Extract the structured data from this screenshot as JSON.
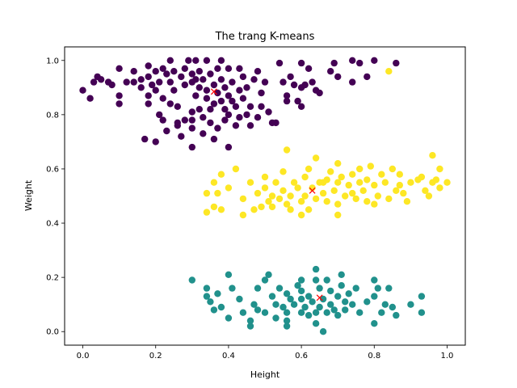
{
  "chart_data": {
    "type": "scatter",
    "title": "The trang K-means",
    "xlabel": "Height",
    "ylabel": "Weight",
    "xlim": [
      -0.05,
      1.05
    ],
    "ylim": [
      -0.05,
      1.05
    ],
    "xticks": [
      "0.0",
      "0.2",
      "0.4",
      "0.6",
      "0.8",
      "1.0"
    ],
    "yticks": [
      "0.0",
      "0.2",
      "0.4",
      "0.6",
      "0.8",
      "1.0"
    ],
    "grid": false,
    "legend": "none",
    "cluster_colors": [
      "#440154",
      "#21918c",
      "#fde725"
    ],
    "centroid_color": "#ff0000",
    "clusters": [
      {
        "color": "#440154",
        "points": [
          [
            0.0,
            0.89
          ],
          [
            0.02,
            0.86
          ],
          [
            0.03,
            0.92
          ],
          [
            0.04,
            0.94
          ],
          [
            0.05,
            0.93
          ],
          [
            0.07,
            0.92
          ],
          [
            0.08,
            0.91
          ],
          [
            0.1,
            0.97
          ],
          [
            0.1,
            0.87
          ],
          [
            0.1,
            0.84
          ],
          [
            0.12,
            0.92
          ],
          [
            0.14,
            0.96
          ],
          [
            0.16,
            0.93
          ],
          [
            0.16,
            0.9
          ],
          [
            0.18,
            0.98
          ],
          [
            0.18,
            0.94
          ],
          [
            0.18,
            0.87
          ],
          [
            0.18,
            0.84
          ],
          [
            0.19,
            0.91
          ],
          [
            0.2,
            0.96
          ],
          [
            0.2,
            0.89
          ],
          [
            0.21,
            0.92
          ],
          [
            0.22,
            0.97
          ],
          [
            0.22,
            0.86
          ],
          [
            0.23,
            0.95
          ],
          [
            0.23,
            0.74
          ],
          [
            0.24,
            1.0
          ],
          [
            0.24,
            0.92
          ],
          [
            0.25,
            0.96
          ],
          [
            0.25,
            0.89
          ],
          [
            0.26,
            0.83
          ],
          [
            0.26,
            0.76
          ],
          [
            0.27,
            0.94
          ],
          [
            0.27,
            0.72
          ],
          [
            0.28,
            0.97
          ],
          [
            0.28,
            0.91
          ],
          [
            0.29,
            1.0
          ],
          [
            0.3,
            0.95
          ],
          [
            0.3,
            0.92
          ],
          [
            0.3,
            0.81
          ],
          [
            0.3,
            0.75
          ],
          [
            0.3,
            0.68
          ],
          [
            0.31,
            1.0
          ],
          [
            0.31,
            0.93
          ],
          [
            0.31,
            0.87
          ],
          [
            0.32,
            0.96
          ],
          [
            0.32,
            0.9
          ],
          [
            0.32,
            0.82
          ],
          [
            0.33,
            0.93
          ],
          [
            0.33,
            0.79
          ],
          [
            0.33,
            0.73
          ],
          [
            0.34,
            1.0
          ],
          [
            0.34,
            0.89
          ],
          [
            0.34,
            0.86
          ],
          [
            0.35,
            0.95
          ],
          [
            0.35,
            0.82
          ],
          [
            0.35,
            0.77
          ],
          [
            0.36,
            0.91
          ],
          [
            0.36,
            0.84
          ],
          [
            0.37,
            0.97
          ],
          [
            0.37,
            0.88
          ],
          [
            0.37,
            0.75
          ],
          [
            0.38,
            1.0
          ],
          [
            0.38,
            0.93
          ],
          [
            0.38,
            0.85
          ],
          [
            0.39,
            0.9
          ],
          [
            0.39,
            0.82
          ],
          [
            0.39,
            0.78
          ],
          [
            0.4,
            0.97
          ],
          [
            0.4,
            0.87
          ],
          [
            0.4,
            0.8
          ],
          [
            0.4,
            0.68
          ],
          [
            0.41,
            0.92
          ],
          [
            0.41,
            0.85
          ],
          [
            0.42,
            0.83
          ],
          [
            0.42,
            0.76
          ],
          [
            0.43,
            0.97
          ],
          [
            0.43,
            0.89
          ],
          [
            0.43,
            0.79
          ],
          [
            0.44,
            0.94
          ],
          [
            0.44,
            0.86
          ],
          [
            0.45,
            0.9
          ],
          [
            0.45,
            0.8
          ],
          [
            0.46,
            0.83
          ],
          [
            0.47,
            0.93
          ],
          [
            0.48,
            0.96
          ],
          [
            0.48,
            0.79
          ],
          [
            0.49,
            0.88
          ],
          [
            0.49,
            0.83
          ],
          [
            0.5,
            0.92
          ],
          [
            0.51,
            0.81
          ],
          [
            0.53,
            0.77
          ],
          [
            0.54,
            0.99
          ],
          [
            0.55,
            0.92
          ],
          [
            0.56,
            0.87
          ],
          [
            0.56,
            0.85
          ],
          [
            0.57,
            0.94
          ],
          [
            0.58,
            0.91
          ],
          [
            0.59,
            0.85
          ],
          [
            0.6,
            0.99
          ],
          [
            0.6,
            0.9
          ],
          [
            0.6,
            0.83
          ],
          [
            0.61,
            0.91
          ],
          [
            0.62,
            0.97
          ],
          [
            0.63,
            0.92
          ],
          [
            0.64,
            0.89
          ],
          [
            0.65,
            0.88
          ],
          [
            0.68,
            0.96
          ],
          [
            0.69,
            0.99
          ],
          [
            0.7,
            0.94
          ],
          [
            0.74,
            1.0
          ],
          [
            0.74,
            0.92
          ],
          [
            0.76,
            0.99
          ],
          [
            0.78,
            0.94
          ],
          [
            0.8,
            1.0
          ],
          [
            0.86,
            0.99
          ],
          [
            0.17,
            0.71
          ],
          [
            0.2,
            0.7
          ],
          [
            0.22,
            0.78
          ],
          [
            0.21,
            0.8
          ],
          [
            0.46,
            0.76
          ],
          [
            0.28,
            0.78
          ],
          [
            0.3,
            0.78
          ],
          [
            0.36,
            0.71
          ],
          [
            0.24,
            0.84
          ],
          [
            0.14,
            0.92
          ],
          [
            0.52,
            0.77
          ],
          [
            0.26,
            0.77
          ]
        ]
      },
      {
        "color": "#21918c",
        "points": [
          [
            0.3,
            0.19
          ],
          [
            0.34,
            0.16
          ],
          [
            0.34,
            0.13
          ],
          [
            0.35,
            0.11
          ],
          [
            0.36,
            0.08
          ],
          [
            0.37,
            0.14
          ],
          [
            0.38,
            0.09
          ],
          [
            0.4,
            0.21
          ],
          [
            0.4,
            0.05
          ],
          [
            0.41,
            0.16
          ],
          [
            0.43,
            0.12
          ],
          [
            0.44,
            0.07
          ],
          [
            0.46,
            0.04
          ],
          [
            0.46,
            0.02
          ],
          [
            0.47,
            0.1
          ],
          [
            0.48,
            0.16
          ],
          [
            0.48,
            0.08
          ],
          [
            0.5,
            0.19
          ],
          [
            0.5,
            0.07
          ],
          [
            0.51,
            0.21
          ],
          [
            0.52,
            0.13
          ],
          [
            0.53,
            0.05
          ],
          [
            0.53,
            0.1
          ],
          [
            0.54,
            0.16
          ],
          [
            0.55,
            0.09
          ],
          [
            0.56,
            0.14
          ],
          [
            0.56,
            0.07
          ],
          [
            0.56,
            0.04
          ],
          [
            0.56,
            0.02
          ],
          [
            0.57,
            0.12
          ],
          [
            0.58,
            0.1
          ],
          [
            0.59,
            0.17
          ],
          [
            0.6,
            0.19
          ],
          [
            0.6,
            0.15
          ],
          [
            0.6,
            0.12
          ],
          [
            0.6,
            0.07
          ],
          [
            0.61,
            0.09
          ],
          [
            0.62,
            0.13
          ],
          [
            0.62,
            0.06
          ],
          [
            0.63,
            0.11
          ],
          [
            0.64,
            0.23
          ],
          [
            0.64,
            0.19
          ],
          [
            0.64,
            0.07
          ],
          [
            0.64,
            0.03
          ],
          [
            0.65,
            0.16
          ],
          [
            0.65,
            0.09
          ],
          [
            0.66,
            0.12
          ],
          [
            0.66,
            0.0
          ],
          [
            0.67,
            0.19
          ],
          [
            0.67,
            0.07
          ],
          [
            0.68,
            0.15
          ],
          [
            0.68,
            0.1
          ],
          [
            0.69,
            0.08
          ],
          [
            0.7,
            0.13
          ],
          [
            0.7,
            0.06
          ],
          [
            0.71,
            0.21
          ],
          [
            0.71,
            0.17
          ],
          [
            0.72,
            0.11
          ],
          [
            0.72,
            0.08
          ],
          [
            0.73,
            0.14
          ],
          [
            0.74,
            0.1
          ],
          [
            0.75,
            0.16
          ],
          [
            0.76,
            0.07
          ],
          [
            0.78,
            0.11
          ],
          [
            0.8,
            0.19
          ],
          [
            0.8,
            0.13
          ],
          [
            0.8,
            0.03
          ],
          [
            0.81,
            0.16
          ],
          [
            0.82,
            0.07
          ],
          [
            0.83,
            0.1
          ],
          [
            0.84,
            0.16
          ],
          [
            0.85,
            0.09
          ],
          [
            0.86,
            0.06
          ],
          [
            0.9,
            0.1
          ],
          [
            0.93,
            0.13
          ],
          [
            0.93,
            0.07
          ]
        ]
      },
      {
        "color": "#fde725",
        "points": [
          [
            0.34,
            0.51
          ],
          [
            0.34,
            0.44
          ],
          [
            0.36,
            0.55
          ],
          [
            0.36,
            0.46
          ],
          [
            0.37,
            0.51
          ],
          [
            0.38,
            0.58
          ],
          [
            0.38,
            0.45
          ],
          [
            0.4,
            0.53
          ],
          [
            0.42,
            0.6
          ],
          [
            0.44,
            0.49
          ],
          [
            0.44,
            0.43
          ],
          [
            0.46,
            0.55
          ],
          [
            0.47,
            0.45
          ],
          [
            0.48,
            0.51
          ],
          [
            0.49,
            0.46
          ],
          [
            0.5,
            0.57
          ],
          [
            0.5,
            0.53
          ],
          [
            0.51,
            0.48
          ],
          [
            0.52,
            0.5
          ],
          [
            0.52,
            0.46
          ],
          [
            0.53,
            0.55
          ],
          [
            0.54,
            0.49
          ],
          [
            0.55,
            0.59
          ],
          [
            0.55,
            0.52
          ],
          [
            0.56,
            0.67
          ],
          [
            0.56,
            0.47
          ],
          [
            0.57,
            0.45
          ],
          [
            0.57,
            0.5
          ],
          [
            0.58,
            0.55
          ],
          [
            0.59,
            0.53
          ],
          [
            0.6,
            0.48
          ],
          [
            0.61,
            0.57
          ],
          [
            0.61,
            0.5
          ],
          [
            0.62,
            0.6
          ],
          [
            0.62,
            0.45
          ],
          [
            0.63,
            0.53
          ],
          [
            0.64,
            0.64
          ],
          [
            0.64,
            0.49
          ],
          [
            0.65,
            0.55
          ],
          [
            0.66,
            0.51
          ],
          [
            0.67,
            0.56
          ],
          [
            0.67,
            0.48
          ],
          [
            0.68,
            0.59
          ],
          [
            0.69,
            0.52
          ],
          [
            0.7,
            0.62
          ],
          [
            0.7,
            0.55
          ],
          [
            0.7,
            0.47
          ],
          [
            0.7,
            0.43
          ],
          [
            0.71,
            0.57
          ],
          [
            0.72,
            0.5
          ],
          [
            0.73,
            0.54
          ],
          [
            0.74,
            0.58
          ],
          [
            0.74,
            0.51
          ],
          [
            0.75,
            0.49
          ],
          [
            0.76,
            0.55
          ],
          [
            0.76,
            0.6
          ],
          [
            0.77,
            0.52
          ],
          [
            0.78,
            0.56
          ],
          [
            0.78,
            0.48
          ],
          [
            0.79,
            0.61
          ],
          [
            0.8,
            0.54
          ],
          [
            0.8,
            0.47
          ],
          [
            0.81,
            0.5
          ],
          [
            0.82,
            0.58
          ],
          [
            0.83,
            0.55
          ],
          [
            0.84,
            0.49
          ],
          [
            0.85,
            0.6
          ],
          [
            0.86,
            0.52
          ],
          [
            0.87,
            0.54
          ],
          [
            0.87,
            0.58
          ],
          [
            0.88,
            0.51
          ],
          [
            0.89,
            0.48
          ],
          [
            0.9,
            0.55
          ],
          [
            0.92,
            0.56
          ],
          [
            0.93,
            0.57
          ],
          [
            0.94,
            0.52
          ],
          [
            0.95,
            0.5
          ],
          [
            0.96,
            0.65
          ],
          [
            0.96,
            0.55
          ],
          [
            0.97,
            0.56
          ],
          [
            0.98,
            0.6
          ],
          [
            0.98,
            0.53
          ],
          [
            1.0,
            0.55
          ],
          [
            0.84,
            0.96
          ],
          [
            0.66,
            0.55
          ],
          [
            0.6,
            0.43
          ]
        ]
      }
    ],
    "centroids": [
      [
        0.36,
        0.885
      ],
      [
        0.65,
        0.125
      ],
      [
        0.63,
        0.52
      ]
    ]
  }
}
